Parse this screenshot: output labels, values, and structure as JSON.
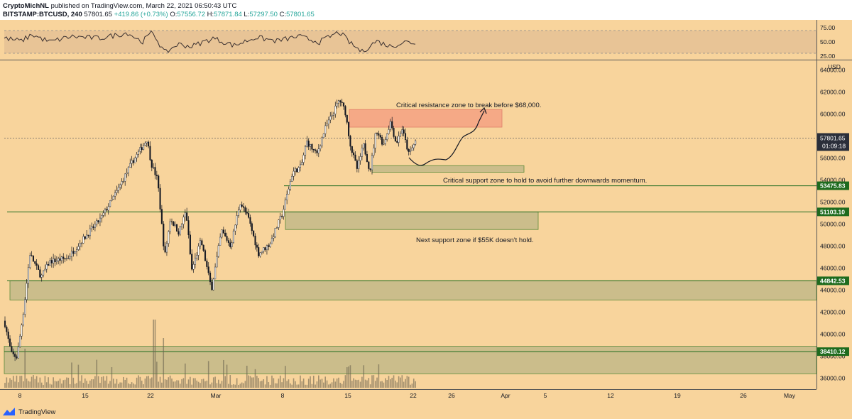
{
  "header": {
    "publisher": "CryptoMichNL",
    "published_text": "published on TradingView.com, March 22, 2021 06:50:43 UTC",
    "symbol": "BITSTAMP:BTCUSD, 240",
    "last": "57801.65",
    "change": "+419.86 (+0.73%)",
    "o_label": "O:",
    "o": "57556.72",
    "h_label": "H:",
    "h": "57871.84",
    "l_label": "L:",
    "l": "57297.50",
    "c_label": "C:",
    "c": "57801.65"
  },
  "footer": {
    "brand": "TradingView",
    "logo_icon": "tradingview-logo-icon"
  },
  "rsi": {
    "ticks": [
      "75.00",
      "50.00",
      "25.00"
    ]
  },
  "chart_data": {
    "type": "candlestick",
    "currency": "USD",
    "y_ticks": [
      36000,
      38000,
      40000,
      42000,
      44000,
      46000,
      48000,
      50000,
      52000,
      54000,
      56000,
      58000,
      60000,
      62000,
      64000
    ],
    "ylim": [
      35000,
      64800
    ],
    "x_tick_labels": [
      "8",
      "15",
      "22",
      "Mar",
      "8",
      "15",
      "22",
      "26",
      "Apr",
      "5",
      "12",
      "19",
      "26",
      "May"
    ],
    "price_labels": [
      {
        "value": 57801.65,
        "text": "57801.65",
        "sub": "01:09:18",
        "kind": "last"
      },
      {
        "value": 53475.83,
        "text": "53475.83",
        "kind": "level"
      },
      {
        "value": 51103.1,
        "text": "51103.10",
        "kind": "level"
      },
      {
        "value": 44842.53,
        "text": "44842.53",
        "kind": "level"
      },
      {
        "value": 38410.12,
        "text": "38410.12",
        "kind": "level"
      }
    ],
    "zones": [
      {
        "name": "resistance",
        "low": 58800,
        "high": 60400,
        "color": "#f4a183"
      },
      {
        "name": "critical-support",
        "low": 54700,
        "high": 55300,
        "color": "#c3b988"
      },
      {
        "name": "support-51k",
        "low": 49500,
        "high": 51100,
        "color": "#c3b988"
      },
      {
        "name": "support-44k",
        "low": 43100,
        "high": 44842,
        "color": "#c3b988"
      },
      {
        "name": "support-38k",
        "low": 36400,
        "high": 38900,
        "color": "#c3b988"
      }
    ],
    "annotations": [
      "Critical resistance zone to break before $68,000.",
      "Critical support zone to hold to avoid further downwards momentum.",
      "Next support zone if $55K doesn't hold."
    ],
    "colors": {
      "up": "#ffffff",
      "down": "#131722",
      "level": "#1e6b1e",
      "background": "#f8d49c"
    }
  }
}
